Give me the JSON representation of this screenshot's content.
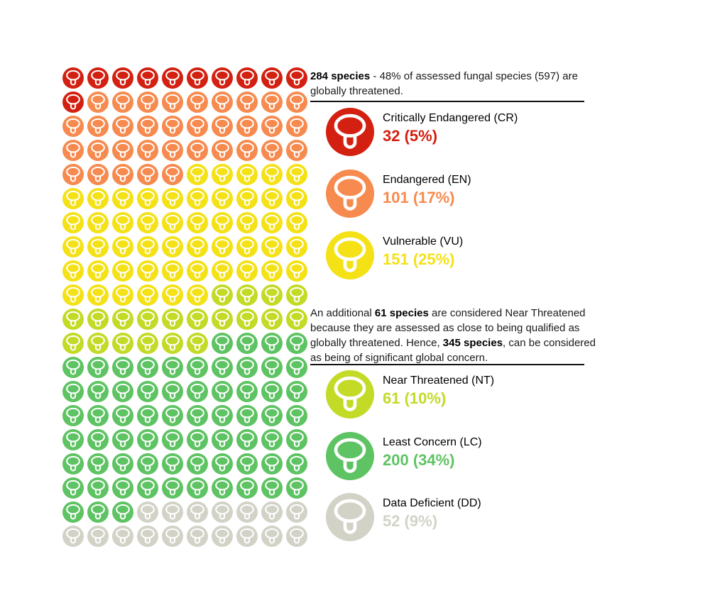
{
  "page": {
    "background": "#ffffff"
  },
  "intro": {
    "segments": [
      {
        "text": "284 species",
        "bold": true
      },
      {
        "text": " - 48% of assessed fungal species (597) are globally threatened.",
        "bold": false
      }
    ]
  },
  "middle": {
    "segments": [
      {
        "text": "An additional ",
        "bold": false
      },
      {
        "text": "61 species",
        "bold": true
      },
      {
        "text": " are considered Near Threatened because they are assessed as close to being qualified as globally threatened. Hence, ",
        "bold": false
      },
      {
        "text": "345 species",
        "bold": true
      },
      {
        "text": ", can be considered as being of significant global concern.",
        "bold": false
      }
    ]
  },
  "chart_data": {
    "type": "waffle",
    "description": "IUCN Red List conservation status of assessed fungal species, one mushroom icon per grid cell",
    "total_assessed": 597,
    "globally_threatened_count": 284,
    "globally_threatened_percent": "48%",
    "near_threatened_additional": 61,
    "global_concern_total": 345,
    "grid": {
      "columns": 10,
      "rows": 20
    },
    "categories": [
      {
        "code": "CR",
        "label": "Critically Endangered",
        "label_display": "Critically Endangered (CR)",
        "count": 32,
        "percent": "5%",
        "value_display": "32 (5%)",
        "color": "#d32011",
        "cells": 11
      },
      {
        "code": "EN",
        "label": "Endangered",
        "label_display": "Endangered (EN)",
        "count": 101,
        "percent": "17%",
        "value_display": "101 (17%)",
        "color": "#f78a4e",
        "cells": 34
      },
      {
        "code": "VU",
        "label": "Vulnerable",
        "label_display": "Vulnerable (VU)",
        "count": 151,
        "percent": "25%",
        "value_display": "151 (25%)",
        "color": "#f4e116",
        "cells": 51
      },
      {
        "code": "NT",
        "label": "Near Threatened",
        "label_display": "Near Threatened (NT)",
        "count": 61,
        "percent": "10%",
        "value_display": "61 (10%)",
        "color": "#c3da26",
        "cells": 20
      },
      {
        "code": "LC",
        "label": "Least Concern",
        "label_display": "Least Concern (LC)",
        "count": 200,
        "percent": "34%",
        "value_display": "200 (34%)",
        "color": "#5ec363",
        "cells": 67
      },
      {
        "code": "DD",
        "label": "Data Deficient",
        "label_display": "Data Deficient (DD)",
        "count": 52,
        "percent": "9%",
        "value_display": "52 (9%)",
        "color": "#d2d2c7",
        "cells": 17
      }
    ],
    "legend_groups": [
      [
        "CR",
        "EN",
        "VU"
      ],
      [
        "NT",
        "LC",
        "DD"
      ]
    ],
    "icon": "mushroom-icon",
    "icon_stroke_color": "#ffffff"
  }
}
